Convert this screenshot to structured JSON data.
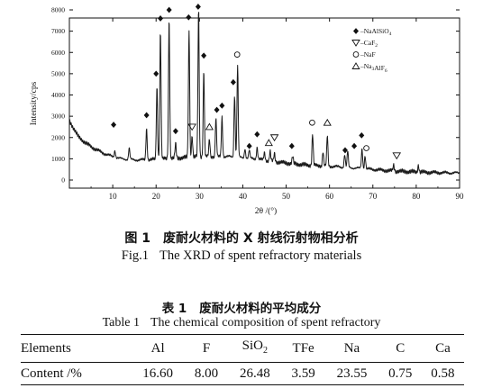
{
  "figure": {
    "caption_cn": {
      "label": "图 1",
      "text": "废耐火材料的 X 射线衍射物相分析"
    },
    "caption_en": {
      "label": "Fig.1",
      "text": "The XRD of spent refractory materials"
    }
  },
  "table": {
    "caption_cn": {
      "label": "表 1",
      "text": "废耐火材料的平均成分"
    },
    "caption_en": {
      "label": "Table 1",
      "text": "The chemical composition of spent refractory"
    },
    "header_label": "Elements",
    "row_label": "Content /%",
    "columns": [
      "Al",
      "F",
      "SiO2",
      "TFe",
      "Na",
      "C",
      "Ca"
    ],
    "values": [
      "16.60",
      "8.00",
      "26.48",
      "3.59",
      "23.55",
      "0.75",
      "0.58"
    ]
  },
  "chart_data": {
    "type": "line",
    "xlabel": "2θ /(°)",
    "ylabel": "Intensity/cps",
    "xlim": [
      0,
      90
    ],
    "ylim": [
      0,
      8000
    ],
    "x_ticks": [
      10,
      20,
      30,
      40,
      50,
      60,
      70,
      80,
      90
    ],
    "y_ticks": [
      0,
      1000,
      2000,
      3000,
      4000,
      5000,
      6000,
      7000,
      8000
    ],
    "legend": {
      "placement": "top-right",
      "entries": [
        {
          "marker": "diamond",
          "label": "NaAlSiO4",
          "prefix": "◆–"
        },
        {
          "marker": "triangle-down",
          "label": "CaF2",
          "prefix": "▽–"
        },
        {
          "marker": "circle",
          "label": "NaF",
          "prefix": "○–"
        },
        {
          "marker": "triangle-up",
          "label": "Na3AlF6",
          "prefix": "Δ–"
        }
      ]
    },
    "baseline": [
      [
        0,
        2800
      ],
      [
        2,
        2050
      ],
      [
        4,
        1700
      ],
      [
        6,
        1450
      ],
      [
        8,
        1250
      ],
      [
        10,
        1100
      ],
      [
        12,
        1000
      ],
      [
        15,
        950
      ],
      [
        18,
        950
      ],
      [
        22,
        1000
      ],
      [
        26,
        1050
      ],
      [
        30,
        1100
      ],
      [
        34,
        1100
      ],
      [
        37,
        1100
      ],
      [
        40,
        1050
      ],
      [
        43,
        1000
      ],
      [
        46,
        900
      ],
      [
        50,
        800
      ],
      [
        55,
        700
      ],
      [
        60,
        650
      ],
      [
        65,
        580
      ],
      [
        70,
        500
      ],
      [
        75,
        420
      ],
      [
        80,
        380
      ],
      [
        85,
        350
      ],
      [
        90,
        330
      ]
    ],
    "peaks": [
      {
        "x": 10.5,
        "y": 1400
      },
      {
        "x": 13.8,
        "y": 1500
      },
      {
        "x": 17.8,
        "y": 2450
      },
      {
        "x": 20.2,
        "y": 4400
      },
      {
        "x": 21.0,
        "y": 7100
      },
      {
        "x": 23.0,
        "y": 7700
      },
      {
        "x": 24.5,
        "y": 1700
      },
      {
        "x": 27.6,
        "y": 7000
      },
      {
        "x": 28.3,
        "y": 2100
      },
      {
        "x": 29.8,
        "y": 8100
      },
      {
        "x": 31.0,
        "y": 5200
      },
      {
        "x": 32.3,
        "y": 1900
      },
      {
        "x": 33.8,
        "y": 2900
      },
      {
        "x": 35.2,
        "y": 3000
      },
      {
        "x": 38.1,
        "y": 4000
      },
      {
        "x": 38.8,
        "y": 5400
      },
      {
        "x": 40.5,
        "y": 1500
      },
      {
        "x": 41.5,
        "y": 1400
      },
      {
        "x": 43.3,
        "y": 1550
      },
      {
        "x": 45.0,
        "y": 1300
      },
      {
        "x": 46.3,
        "y": 1350
      },
      {
        "x": 47.3,
        "y": 1250
      },
      {
        "x": 51.5,
        "y": 1100
      },
      {
        "x": 56.1,
        "y": 2150
      },
      {
        "x": 58.5,
        "y": 1350
      },
      {
        "x": 59.5,
        "y": 2100
      },
      {
        "x": 63.5,
        "y": 1200
      },
      {
        "x": 64.2,
        "y": 1350
      },
      {
        "x": 67.5,
        "y": 1500
      },
      {
        "x": 68.2,
        "y": 1150
      },
      {
        "x": 74.8,
        "y": 700
      },
      {
        "x": 80.5,
        "y": 700
      }
    ],
    "phase_markers": [
      {
        "phase": "NaAlSiO4",
        "symbol": "diamond",
        "x": 10.2,
        "y": 2600
      },
      {
        "phase": "NaAlSiO4",
        "symbol": "diamond",
        "x": 17.8,
        "y": 3050
      },
      {
        "phase": "NaAlSiO4",
        "symbol": "diamond",
        "x": 20.0,
        "y": 5000
      },
      {
        "phase": "NaAlSiO4",
        "symbol": "diamond",
        "x": 21.0,
        "y": 7600
      },
      {
        "phase": "NaAlSiO4",
        "symbol": "diamond",
        "x": 23.0,
        "y": 8000
      },
      {
        "phase": "NaAlSiO4",
        "symbol": "diamond",
        "x": 24.5,
        "y": 2300
      },
      {
        "phase": "NaAlSiO4",
        "symbol": "diamond",
        "x": 27.5,
        "y": 7650
      },
      {
        "phase": "NaAlSiO4",
        "symbol": "diamond",
        "x": 29.7,
        "y": 8150
      },
      {
        "phase": "NaAlSiO4",
        "symbol": "diamond",
        "x": 31.0,
        "y": 5850
      },
      {
        "phase": "NaAlSiO4",
        "symbol": "diamond",
        "x": 34.0,
        "y": 3300
      },
      {
        "phase": "NaAlSiO4",
        "symbol": "diamond",
        "x": 35.2,
        "y": 3500
      },
      {
        "phase": "NaAlSiO4",
        "symbol": "diamond",
        "x": 37.8,
        "y": 4600
      },
      {
        "phase": "NaAlSiO4",
        "symbol": "diamond",
        "x": 41.5,
        "y": 1600
      },
      {
        "phase": "NaAlSiO4",
        "symbol": "diamond",
        "x": 43.3,
        "y": 2150
      },
      {
        "phase": "NaAlSiO4",
        "symbol": "diamond",
        "x": 51.3,
        "y": 1600
      },
      {
        "phase": "NaAlSiO4",
        "symbol": "diamond",
        "x": 63.6,
        "y": 1400
      },
      {
        "phase": "NaAlSiO4",
        "symbol": "diamond",
        "x": 65.7,
        "y": 1600
      },
      {
        "phase": "NaAlSiO4",
        "symbol": "diamond",
        "x": 67.4,
        "y": 2100
      },
      {
        "phase": "CaF2",
        "symbol": "triangle-down",
        "x": 28.3,
        "y": 2500
      },
      {
        "phase": "CaF2",
        "symbol": "triangle-down",
        "x": 47.3,
        "y": 2000
      },
      {
        "phase": "CaF2",
        "symbol": "triangle-down",
        "x": 75.5,
        "y": 1150
      },
      {
        "phase": "NaF",
        "symbol": "circle",
        "x": 38.7,
        "y": 5900
      },
      {
        "phase": "NaF",
        "symbol": "circle",
        "x": 56.0,
        "y": 2700
      },
      {
        "phase": "NaF",
        "symbol": "circle",
        "x": 68.5,
        "y": 1500
      },
      {
        "phase": "Na3AlF6",
        "symbol": "triangle-up",
        "x": 32.3,
        "y": 2500
      },
      {
        "phase": "Na3AlF6",
        "symbol": "triangle-up",
        "x": 46.0,
        "y": 1750
      },
      {
        "phase": "Na3AlF6",
        "symbol": "triangle-up",
        "x": 59.5,
        "y": 2700
      }
    ],
    "grid": false
  }
}
